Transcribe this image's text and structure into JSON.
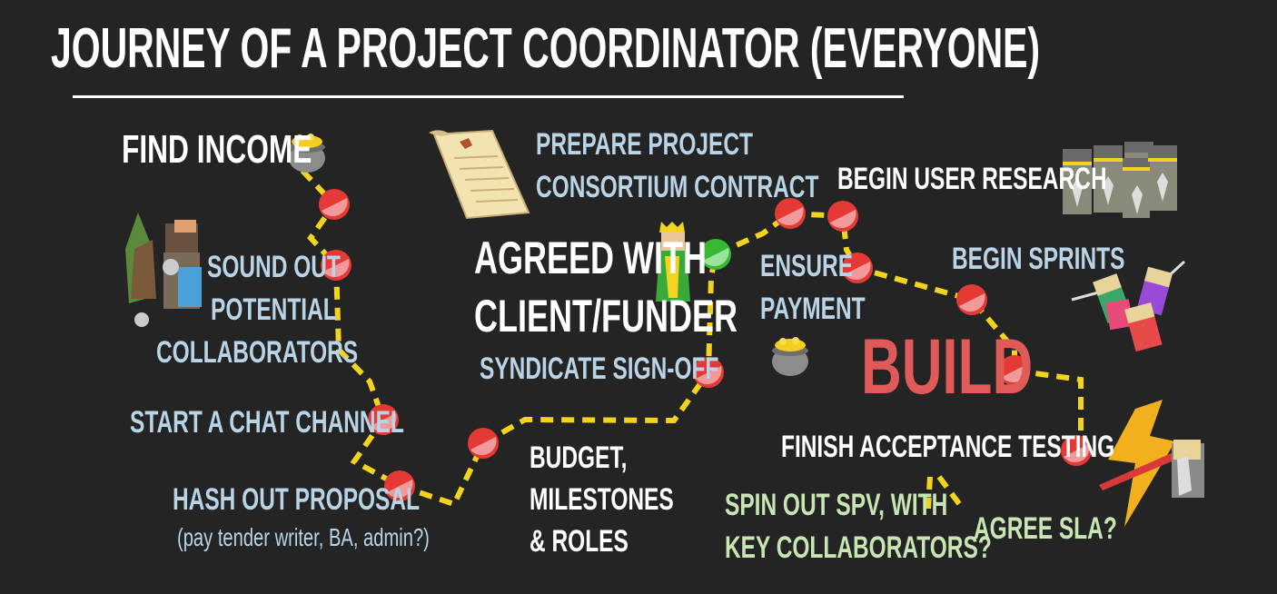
{
  "title": "JOURNEY OF A PROJECT COORDINATOR (EVERYONE)",
  "labels": {
    "find_income": "FIND INCOME",
    "sound_out_1": "SOUND OUT",
    "sound_out_2": "POTENTIAL",
    "sound_out_3": "COLLABORATORS",
    "chat_channel": "START A CHAT CHANNEL",
    "hash_out": "HASH OUT PROPOSAL",
    "hash_out_note": "(pay tender writer, BA, admin?)",
    "budget_1": "BUDGET,",
    "budget_2": "MILESTONES",
    "budget_3": "& ROLES",
    "syndicate": "SYNDICATE SIGN-OFF",
    "agreed_1": "AGREED WITH",
    "agreed_2": "CLIENT/FUNDER",
    "prepare_1": "PREPARE PROJECT",
    "prepare_2": "CONSORTIUM CONTRACT",
    "user_research": "BEGIN USER RESEARCH",
    "ensure_1": "ENSURE",
    "ensure_2": "PAYMENT",
    "sprints": "BEGIN SPRINTS",
    "build": "BUILD",
    "acceptance": "FINISH ACCEPTANCE TESTING",
    "spv_1": "SPIN OUT SPV, WITH",
    "spv_2": "KEY COLLABORATORS?",
    "sla": "AGREE SLA?"
  },
  "icons": [
    "gold-pot-icon",
    "collaborators-icon",
    "scroll-icon",
    "client-icon",
    "user-research-icon",
    "gold-pot-icon",
    "sprint-team-icon",
    "testing-icon"
  ],
  "colors": {
    "background": "#242424",
    "path": "#f2d41f",
    "milestone_pending": "#e53935",
    "milestone_done": "#35b935",
    "label_blue": "#b8d4e6",
    "label_green": "#c7e6b3",
    "build_red": "#e05a5a"
  }
}
